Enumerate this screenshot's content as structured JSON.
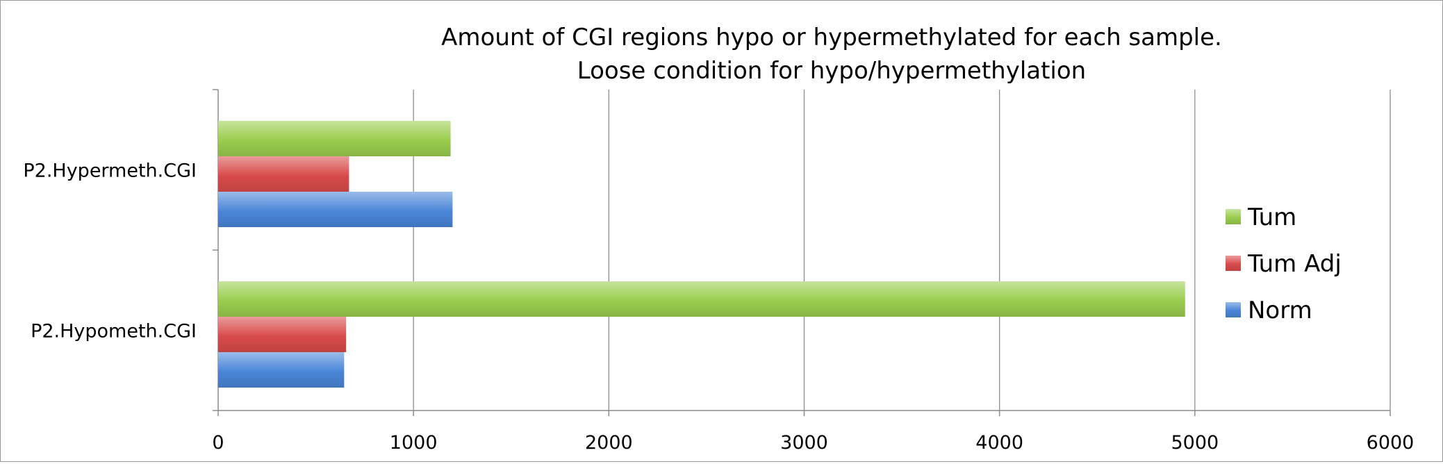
{
  "chart_data": {
    "type": "bar",
    "orientation": "horizontal",
    "title_lines": [
      "Amount of CGI regions hypo or hypermethylated for each sample.",
      "Loose condition for hypo/hypermethylation"
    ],
    "xlabel": "",
    "ylabel": "",
    "categories": [
      "P2.Hypermeth.CGI",
      "P2.Hypometh.CGI"
    ],
    "series": [
      {
        "name": "Tum",
        "color": "#9ACD4E",
        "values": [
          1190,
          4950
        ]
      },
      {
        "name": "Tum Adj",
        "color": "#D94B4B",
        "values": [
          670,
          655
        ]
      },
      {
        "name": "Norm",
        "color": "#4A86D8",
        "values": [
          1200,
          645
        ]
      }
    ],
    "xlim": [
      0,
      6000
    ],
    "x_ticks": [
      "0",
      "1000",
      "2000",
      "3000",
      "4000",
      "5000",
      "6000"
    ],
    "grid": "vertical",
    "legend_position": "right"
  }
}
